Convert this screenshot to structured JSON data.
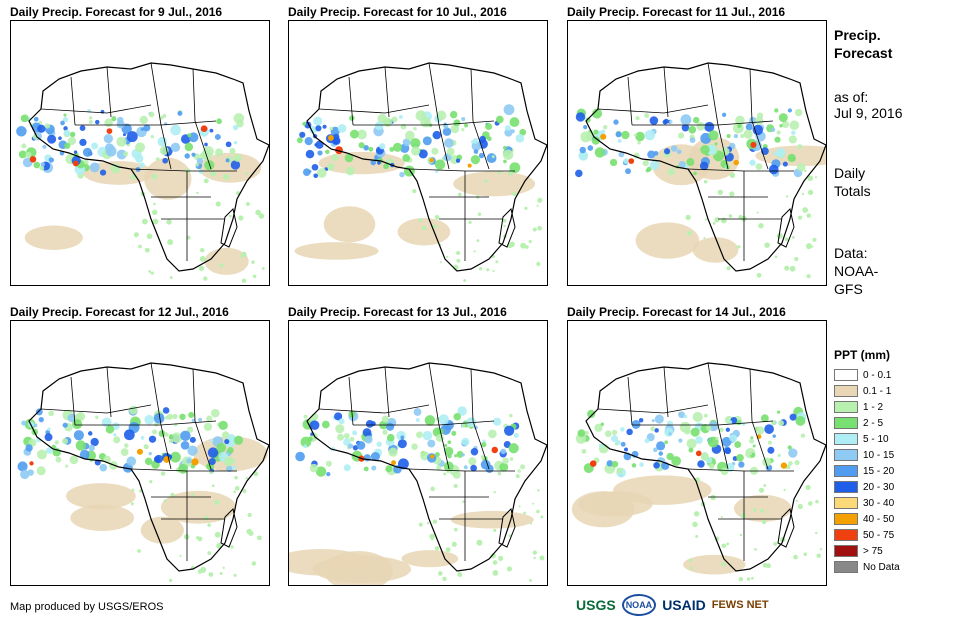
{
  "panels": [
    {
      "title": "Daily Precip. Forecast for 9 Jul., 2016"
    },
    {
      "title": "Daily Precip. Forecast for 10 Jul., 2016"
    },
    {
      "title": "Daily Precip. Forecast for 11 Jul., 2016"
    },
    {
      "title": "Daily Precip. Forecast for 12 Jul., 2016"
    },
    {
      "title": "Daily Precip. Forecast for 13 Jul., 2016"
    },
    {
      "title": "Daily Precip. Forecast for 14 Jul., 2016"
    }
  ],
  "sidebar": {
    "title": "Precip. Forecast",
    "asof_label": "as of:",
    "asof_date": "Jul 9, 2016",
    "totals": "Daily Totals",
    "data_label": "Data:",
    "data_source": "NOAA-GFS"
  },
  "legend": {
    "title": "PPT (mm)",
    "items": [
      {
        "label": "0 - 0.1",
        "color": "#ffffff"
      },
      {
        "label": "0.1 - 1",
        "color": "#e8d6b4"
      },
      {
        "label": "1 - 2",
        "color": "#b8f0b0"
      },
      {
        "label": "2 - 5",
        "color": "#78e070"
      },
      {
        "label": "5 - 10",
        "color": "#aeeef4"
      },
      {
        "label": "10 - 15",
        "color": "#8ecaf4"
      },
      {
        "label": "15 - 20",
        "color": "#4f9cf0"
      },
      {
        "label": "20 - 30",
        "color": "#1e5ee8"
      },
      {
        "label": "30 - 40",
        "color": "#fcd978"
      },
      {
        "label": "40 - 50",
        "color": "#f4a000"
      },
      {
        "label": "50 - 75",
        "color": "#f04010"
      },
      {
        "label": "> 75",
        "color": "#a01010"
      },
      {
        "label": "No Data",
        "color": "#888888"
      }
    ]
  },
  "footer": {
    "credit": "Map produced by USGS/EROS",
    "logos": [
      "USGS",
      "NOAA",
      "USAID",
      "FEWS NET"
    ]
  }
}
